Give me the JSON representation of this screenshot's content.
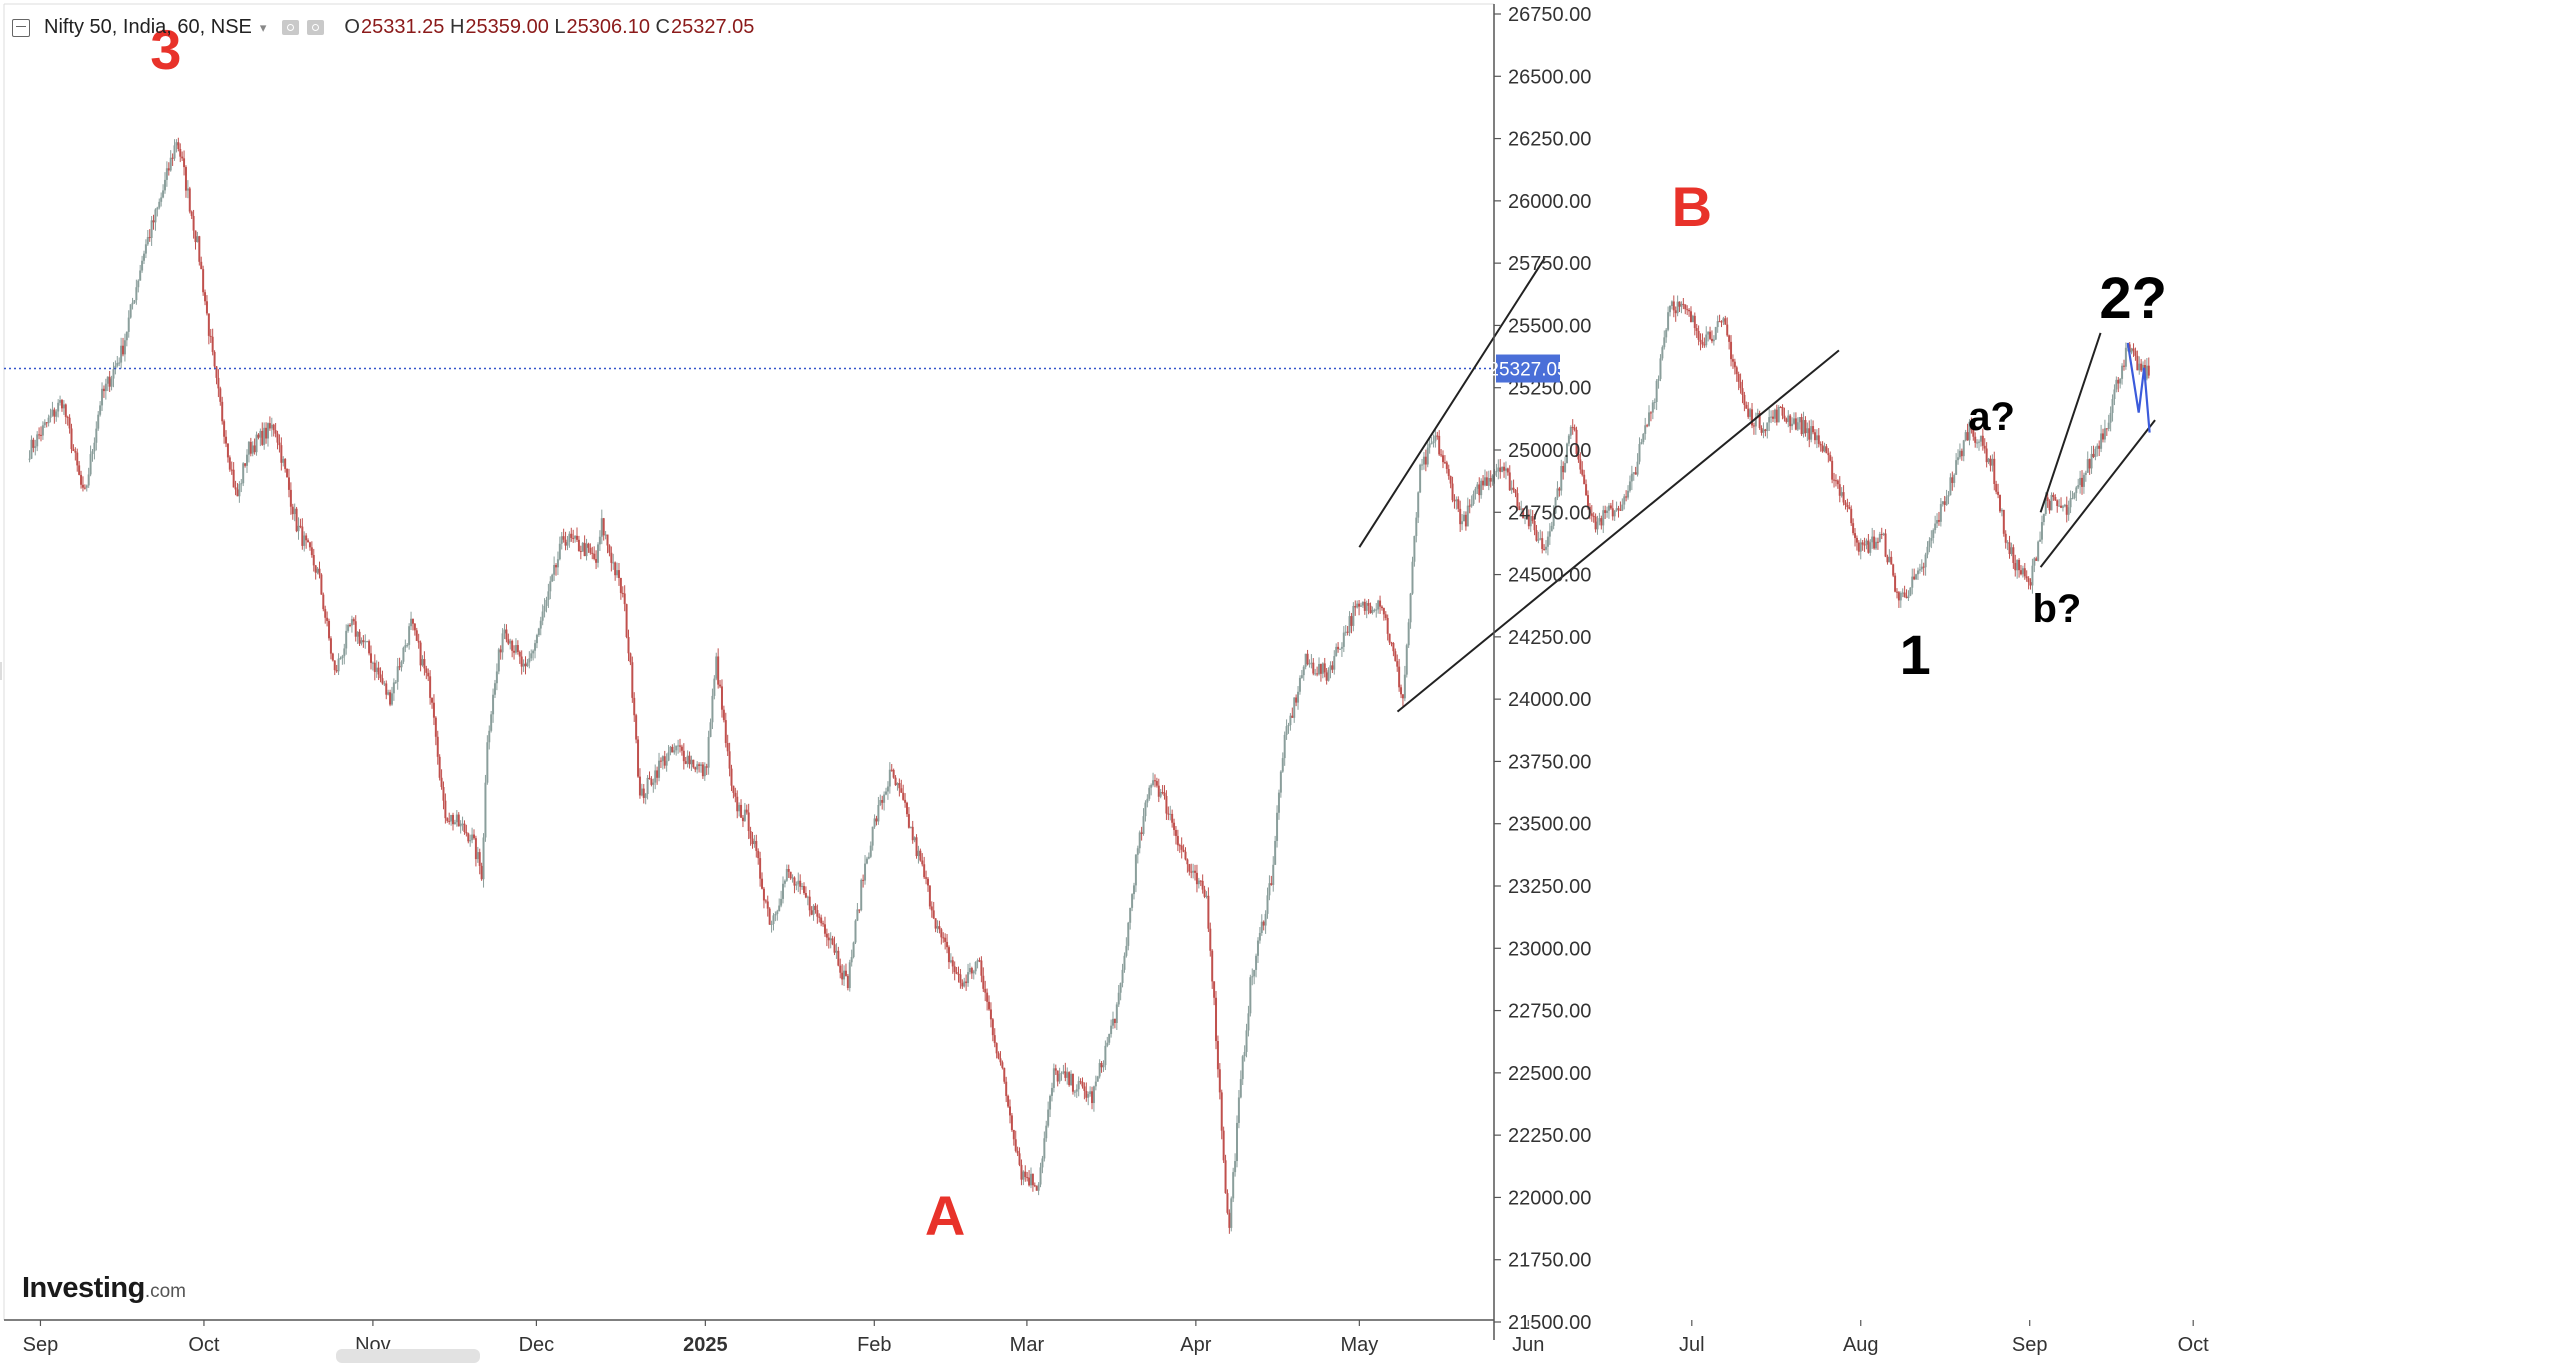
{
  "header": {
    "symbol": "Nifty 50, India, 60, NSE",
    "caret": "▾",
    "open_label": "O",
    "open": "25331.25",
    "high_label": "H",
    "high": "25359.00",
    "low_label": "L",
    "low": "25306.10",
    "close_label": "C",
    "close": "25327.05"
  },
  "branding": {
    "logo": "Investing",
    "logo_domain": ".com"
  },
  "colors": {
    "up": "#8a9e9b",
    "down": "#c0504d",
    "price_line": "#3355cc",
    "price_label_bg": "#4a6fd8",
    "wave_red": "#e8322a",
    "wave_black": "#000000",
    "trendline": "#222222",
    "projection": "#3b5bdb"
  },
  "chart_data": {
    "type": "candlestick",
    "symbol": "Nifty 50",
    "interval": "60",
    "exchange": "NSE",
    "ylim": [
      21500,
      26750
    ],
    "y_ticks": [
      21500,
      21750,
      22000,
      22250,
      22500,
      22750,
      23000,
      23250,
      23500,
      23750,
      24000,
      24250,
      24500,
      24750,
      25000,
      25250,
      25500,
      25750,
      26000,
      26250,
      26500,
      26750
    ],
    "y_tick_labels": [
      "21500.00",
      "21750.00",
      "22000.00",
      "22250.00",
      "22500.00",
      "22750.00",
      "23000.00",
      "23250.00",
      "23500.00",
      "23750.00",
      "24000.00",
      "24250.00",
      "24500.00",
      "24750.00",
      "25000.00",
      "25250.00",
      "25500.00",
      "25750.00",
      "26000.00",
      "26250.00",
      "26500.00",
      "26750.00"
    ],
    "x_tick_labels": [
      "Sep",
      "Oct",
      "Nov",
      "Dec",
      "2025",
      "Feb",
      "Mar",
      "Apr",
      "May",
      "Jun",
      "Jul",
      "Aug",
      "Sep",
      "Oct"
    ],
    "last_price": 25327.05,
    "last_price_label": "25327.05",
    "price_path": [
      [
        "2024-08-30",
        25000
      ],
      [
        "2024-09-05",
        25200
      ],
      [
        "2024-09-09",
        24800
      ],
      [
        "2024-09-12",
        25200
      ],
      [
        "2024-09-16",
        25400
      ],
      [
        "2024-09-20",
        25800
      ],
      [
        "2024-09-23",
        26000
      ],
      [
        "2024-09-26",
        26250
      ],
      [
        "2024-09-27",
        26150
      ],
      [
        "2024-09-30",
        25800
      ],
      [
        "2024-10-03",
        25300
      ],
      [
        "2024-10-07",
        24800
      ],
      [
        "2024-10-09",
        25000
      ],
      [
        "2024-10-14",
        25100
      ],
      [
        "2024-10-18",
        24700
      ],
      [
        "2024-10-22",
        24500
      ],
      [
        "2024-10-25",
        24100
      ],
      [
        "2024-10-28",
        24300
      ],
      [
        "2024-10-31",
        24200
      ],
      [
        "2024-11-04",
        24000
      ],
      [
        "2024-11-08",
        24300
      ],
      [
        "2024-11-12",
        24000
      ],
      [
        "2024-11-14",
        23550
      ],
      [
        "2024-11-19",
        23450
      ],
      [
        "2024-11-21",
        23300
      ],
      [
        "2024-11-22",
        23850
      ],
      [
        "2024-11-25",
        24300
      ],
      [
        "2024-11-29",
        24100
      ],
      [
        "2024-12-03",
        24400
      ],
      [
        "2024-12-06",
        24650
      ],
      [
        "2024-12-10",
        24600
      ],
      [
        "2024-12-12",
        24550
      ],
      [
        "2024-12-13",
        24700
      ],
      [
        "2024-12-17",
        24400
      ],
      [
        "2024-12-19",
        23950
      ],
      [
        "2024-12-20",
        23600
      ],
      [
        "2024-12-24",
        23750
      ],
      [
        "2024-12-27",
        23800
      ],
      [
        "2025-01-01",
        23700
      ],
      [
        "2025-01-03",
        24150
      ],
      [
        "2025-01-06",
        23600
      ],
      [
        "2025-01-09",
        23500
      ],
      [
        "2025-01-13",
        23100
      ],
      [
        "2025-01-16",
        23300
      ],
      [
        "2025-01-21",
        23150
      ],
      [
        "2025-01-24",
        23050
      ],
      [
        "2025-01-27",
        22850
      ],
      [
        "2025-01-30",
        23300
      ],
      [
        "2025-02-01",
        23500
      ],
      [
        "2025-02-04",
        23700
      ],
      [
        "2025-02-06",
        23600
      ],
      [
        "2025-02-10",
        23300
      ],
      [
        "2025-02-13",
        23050
      ],
      [
        "2025-02-17",
        22850
      ],
      [
        "2025-02-20",
        22950
      ],
      [
        "2025-02-24",
        22550
      ],
      [
        "2025-02-28",
        22100
      ],
      [
        "2025-03-03",
        22050
      ],
      [
        "2025-03-06",
        22500
      ],
      [
        "2025-03-10",
        22450
      ],
      [
        "2025-03-13",
        22400
      ],
      [
        "2025-03-18",
        22800
      ],
      [
        "2025-03-21",
        23350
      ],
      [
        "2025-03-24",
        23700
      ],
      [
        "2025-03-27",
        23550
      ],
      [
        "2025-03-31",
        23300
      ],
      [
        "2025-04-03",
        23200
      ],
      [
        "2025-04-04",
        22900
      ],
      [
        "2025-04-07",
        21850
      ],
      [
        "2025-04-09",
        22400
      ],
      [
        "2025-04-11",
        22850
      ],
      [
        "2025-04-15",
        23300
      ],
      [
        "2025-04-17",
        23800
      ],
      [
        "2025-04-21",
        24150
      ],
      [
        "2025-04-25",
        24100
      ],
      [
        "2025-04-30",
        24350
      ],
      [
        "2025-05-05",
        24400
      ],
      [
        "2025-05-09",
        24000
      ],
      [
        "2025-05-12",
        24900
      ],
      [
        "2025-05-15",
        25050
      ],
      [
        "2025-05-20",
        24700
      ],
      [
        "2025-05-23",
        24850
      ],
      [
        "2025-05-27",
        24950
      ],
      [
        "2025-05-30",
        24800
      ],
      [
        "2025-06-04",
        24600
      ],
      [
        "2025-06-09",
        25100
      ],
      [
        "2025-06-13",
        24700
      ],
      [
        "2025-06-19",
        24800
      ],
      [
        "2025-06-24",
        25200
      ],
      [
        "2025-06-27",
        25600
      ],
      [
        "2025-06-30",
        25550
      ],
      [
        "2025-07-03",
        25450
      ],
      [
        "2025-07-07",
        25500
      ],
      [
        "2025-07-11",
        25150
      ],
      [
        "2025-07-14",
        25100
      ],
      [
        "2025-07-17",
        25150
      ],
      [
        "2025-07-21",
        25100
      ],
      [
        "2025-07-24",
        25050
      ],
      [
        "2025-07-29",
        24800
      ],
      [
        "2025-08-01",
        24600
      ],
      [
        "2025-08-05",
        24650
      ],
      [
        "2025-08-08",
        24400
      ],
      [
        "2025-08-12",
        24500
      ],
      [
        "2025-08-14",
        24650
      ],
      [
        "2025-08-18",
        24900
      ],
      [
        "2025-08-21",
        25100
      ],
      [
        "2025-08-25",
        24950
      ],
      [
        "2025-08-28",
        24600
      ],
      [
        "2025-09-01",
        24450
      ],
      [
        "2025-09-04",
        24800
      ],
      [
        "2025-09-08",
        24750
      ],
      [
        "2025-09-11",
        24900
      ],
      [
        "2025-09-15",
        25100
      ],
      [
        "2025-09-18",
        25350
      ],
      [
        "2025-09-19",
        25400
      ],
      [
        "2025-09-22",
        25300
      ],
      [
        "2025-09-23",
        25327.05
      ]
    ],
    "labels": [
      {
        "text": "3",
        "date": "2024-09-24",
        "price": 26530,
        "color": "red"
      },
      {
        "text": "A",
        "date": "2025-02-14",
        "price": 21850,
        "color": "red"
      },
      {
        "text": "B",
        "date": "2025-07-01",
        "price": 25900,
        "color": "red"
      },
      {
        "text": "1",
        "date": "2025-08-11",
        "price": 24100,
        "color": "black"
      },
      {
        "text": "a?",
        "date": "2025-08-25",
        "price": 25080,
        "color": "black"
      },
      {
        "text": "b?",
        "date": "2025-09-06",
        "price": 24310,
        "color": "black"
      },
      {
        "text": "2?",
        "date": "2025-09-20",
        "price": 25530,
        "color": "black"
      }
    ],
    "trendlines": [
      {
        "from": [
          "2025-05-01",
          24610
        ],
        "to": [
          "2025-06-04",
          25770
        ]
      },
      {
        "from": [
          "2025-05-08",
          23950
        ],
        "to": [
          "2025-07-28",
          25400
        ]
      },
      {
        "from": [
          "2025-09-03",
          24750
        ],
        "to": [
          "2025-09-14",
          25470
        ]
      },
      {
        "from": [
          "2025-09-03",
          24530
        ],
        "to": [
          "2025-09-24",
          25120
        ]
      }
    ],
    "projection": [
      [
        "2025-09-19",
        25430
      ],
      [
        "2025-09-21",
        25150
      ],
      [
        "2025-09-22",
        25330
      ],
      [
        "2025-09-23",
        25070
      ]
    ]
  }
}
